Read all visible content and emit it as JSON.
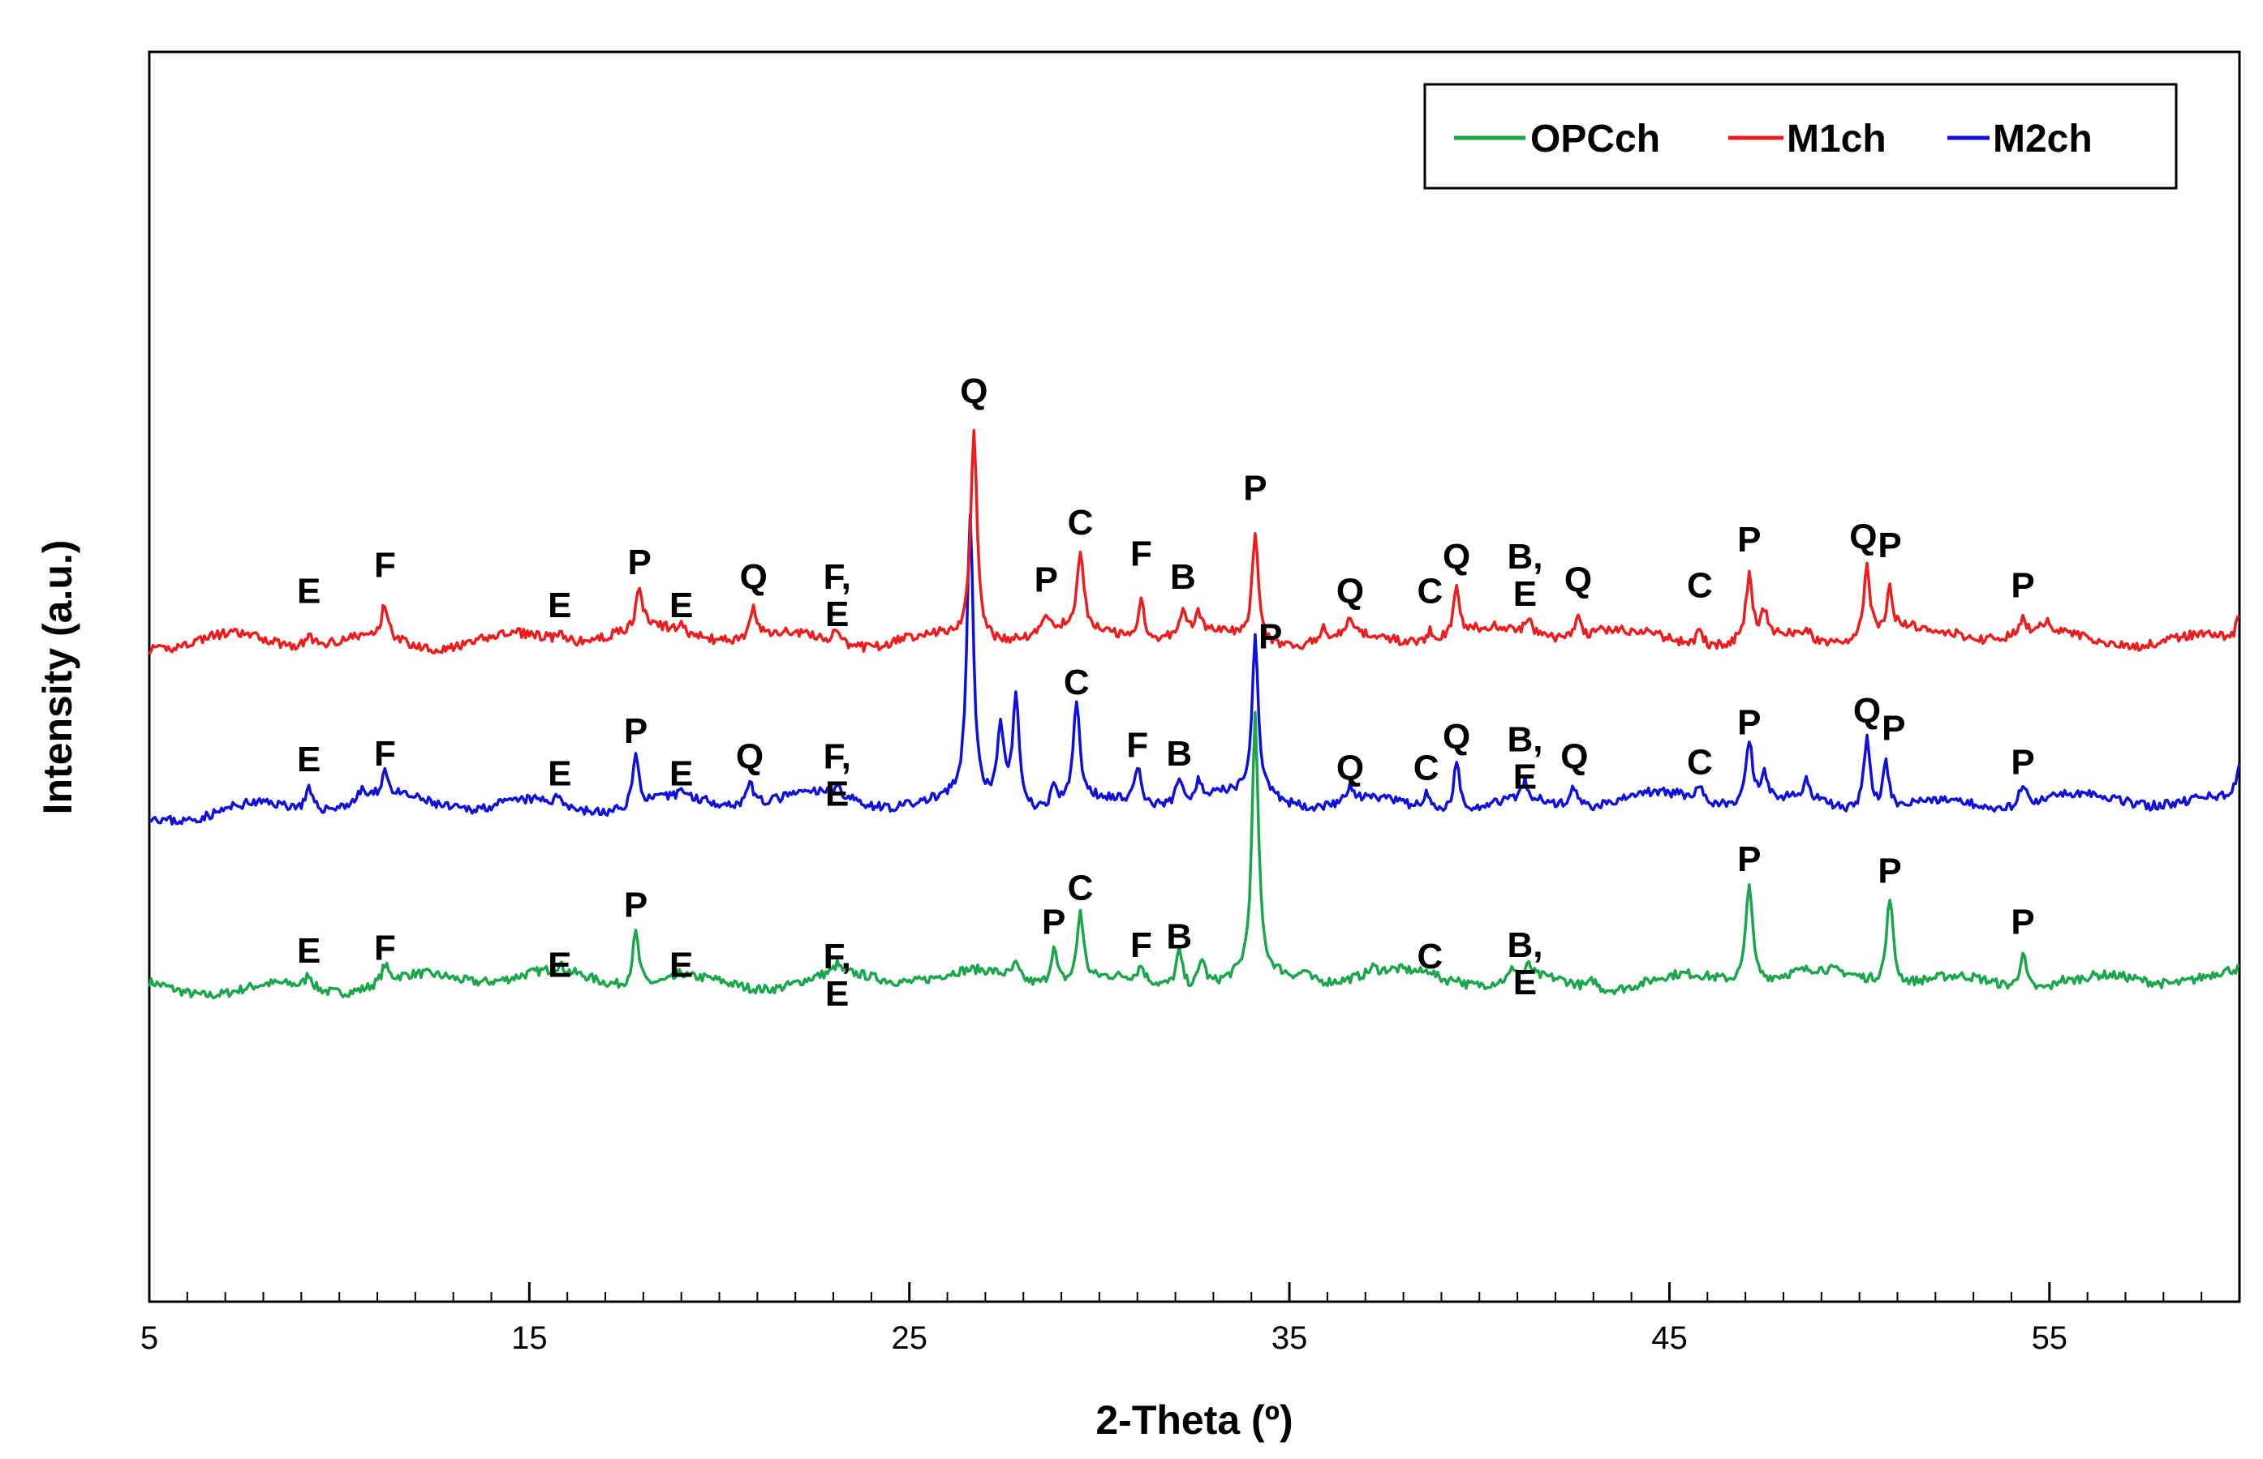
{
  "chart_data": {
    "type": "line",
    "title": "",
    "xlabel": "2-Theta (º)",
    "ylabel": "Intensity (a.u.)",
    "xlim": [
      5,
      60
    ],
    "x_ticks": [
      5,
      15,
      25,
      35,
      45,
      55
    ],
    "x_tick_labels": [
      "5",
      "15",
      "25",
      "35",
      "45",
      "55"
    ],
    "x_minor_step": 1,
    "y_ticks": [],
    "legend": {
      "position": "top-right",
      "entries": [
        "OPCch",
        "M1ch",
        "M2ch"
      ]
    },
    "colors": {
      "OPCch": "#1aa64a",
      "M1ch": "#ee1c1c",
      "M2ch": "#1010dd"
    },
    "series": [
      {
        "name": "OPCch",
        "baseline": 100,
        "noise_seed": 7,
        "peaks": [
          [
            9.2,
            5
          ],
          [
            11.2,
            6
          ],
          [
            15.8,
            2
          ],
          [
            17.8,
            19
          ],
          [
            19.0,
            2
          ],
          [
            23.1,
            3
          ],
          [
            27.8,
            5
          ],
          [
            28.8,
            13
          ],
          [
            29.5,
            25
          ],
          [
            31.1,
            5
          ],
          [
            32.1,
            13
          ],
          [
            32.7,
            10
          ],
          [
            34.1,
            90
          ],
          [
            35.4,
            3
          ],
          [
            37.2,
            2
          ],
          [
            38.7,
            2
          ],
          [
            39.4,
            2
          ],
          [
            40.9,
            4
          ],
          [
            41.3,
            4
          ],
          [
            43.0,
            3
          ],
          [
            47.1,
            36
          ],
          [
            50.8,
            31
          ],
          [
            54.3,
            13
          ],
          [
            55.3,
            2
          ]
        ],
        "labels": [
          {
            "x": 9.2,
            "text": "E",
            "y": 106
          },
          {
            "x": 11.2,
            "text": "F",
            "y": 107
          },
          {
            "x": 15.8,
            "text": "E",
            "y": 101
          },
          {
            "x": 17.8,
            "text": "P",
            "y": 122
          },
          {
            "x": 19.0,
            "text": "E",
            "y": 101
          },
          {
            "x": 23.1,
            "text": "F,\nE",
            "y": 104
          },
          {
            "x": 28.8,
            "text": "P",
            "y": 116
          },
          {
            "x": 29.5,
            "text": "C",
            "y": 128
          },
          {
            "x": 31.1,
            "text": "F",
            "y": 108
          },
          {
            "x": 32.1,
            "text": "B",
            "y": 111
          },
          {
            "x": 38.7,
            "text": "C",
            "y": 104
          },
          {
            "x": 41.2,
            "text": "B,\nE",
            "y": 108
          },
          {
            "x": 47.1,
            "text": "P",
            "y": 138
          },
          {
            "x": 50.8,
            "text": "P",
            "y": 134
          },
          {
            "x": 54.3,
            "text": "P",
            "y": 116
          }
        ]
      },
      {
        "name": "M2ch",
        "baseline": 162,
        "noise_seed": 23,
        "peaks": [
          [
            9.2,
            7
          ],
          [
            10.6,
            4
          ],
          [
            11.2,
            9
          ],
          [
            15.8,
            3
          ],
          [
            17.8,
            18
          ],
          [
            19.0,
            3
          ],
          [
            20.8,
            9
          ],
          [
            23.1,
            4
          ],
          [
            26.6,
            100
          ],
          [
            27.4,
            29
          ],
          [
            27.8,
            40
          ],
          [
            28.8,
            6
          ],
          [
            29.4,
            35
          ],
          [
            31.0,
            13
          ],
          [
            32.1,
            9
          ],
          [
            32.6,
            6
          ],
          [
            34.1,
            55
          ],
          [
            36.6,
            5
          ],
          [
            38.6,
            6
          ],
          [
            39.4,
            17
          ],
          [
            41.2,
            6
          ],
          [
            42.5,
            7
          ],
          [
            45.8,
            6
          ],
          [
            47.1,
            22
          ],
          [
            47.5,
            9
          ],
          [
            48.6,
            6
          ],
          [
            50.2,
            26
          ],
          [
            50.7,
            16
          ],
          [
            54.3,
            8
          ],
          [
            60,
            14
          ]
        ],
        "labels": [
          {
            "x": 9.2,
            "text": "E",
            "y": 173
          },
          {
            "x": 11.2,
            "text": "F",
            "y": 175
          },
          {
            "x": 15.8,
            "text": "E",
            "y": 168
          },
          {
            "x": 17.8,
            "text": "P",
            "y": 183
          },
          {
            "x": 19.0,
            "text": "E",
            "y": 168
          },
          {
            "x": 20.8,
            "text": "Q",
            "y": 174
          },
          {
            "x": 23.1,
            "text": "F,\nE",
            "y": 174
          },
          {
            "x": 29.4,
            "text": "C",
            "y": 200
          },
          {
            "x": 31.0,
            "text": "F",
            "y": 178
          },
          {
            "x": 32.1,
            "text": "B",
            "y": 175
          },
          {
            "x": 34.5,
            "text": "P",
            "y": 216
          },
          {
            "x": 36.6,
            "text": "Q",
            "y": 170
          },
          {
            "x": 38.6,
            "text": "C",
            "y": 170
          },
          {
            "x": 39.4,
            "text": "Q",
            "y": 181
          },
          {
            "x": 41.2,
            "text": "B,\nE",
            "y": 180
          },
          {
            "x": 42.5,
            "text": "Q",
            "y": 174
          },
          {
            "x": 45.8,
            "text": "C",
            "y": 172
          },
          {
            "x": 47.1,
            "text": "P",
            "y": 186
          },
          {
            "x": 50.2,
            "text": "Q",
            "y": 190
          },
          {
            "x": 50.9,
            "text": "P",
            "y": 184
          },
          {
            "x": 54.3,
            "text": "P",
            "y": 172
          }
        ]
      },
      {
        "name": "M1ch",
        "baseline": 220,
        "noise_seed": 41,
        "peaks": [
          [
            9.2,
            4
          ],
          [
            11.2,
            12
          ],
          [
            15.8,
            2
          ],
          [
            17.9,
            14
          ],
          [
            19.0,
            2
          ],
          [
            20.9,
            10
          ],
          [
            23.1,
            5
          ],
          [
            26.7,
            74
          ],
          [
            28.6,
            6
          ],
          [
            29.5,
            26
          ],
          [
            31.1,
            14
          ],
          [
            32.2,
            9
          ],
          [
            32.6,
            6
          ],
          [
            34.1,
            38
          ],
          [
            35.9,
            4
          ],
          [
            36.6,
            5
          ],
          [
            38.7,
            4
          ],
          [
            39.4,
            17
          ],
          [
            41.3,
            4
          ],
          [
            42.6,
            9
          ],
          [
            43.2,
            4
          ],
          [
            45.8,
            6
          ],
          [
            47.1,
            22
          ],
          [
            47.5,
            8
          ],
          [
            48.6,
            4
          ],
          [
            50.2,
            25
          ],
          [
            50.8,
            15
          ],
          [
            54.3,
            6
          ],
          [
            54.9,
            3
          ],
          [
            60,
            10
          ]
        ],
        "labels": [
          {
            "x": 9.2,
            "text": "E",
            "y": 232
          },
          {
            "x": 11.2,
            "text": "F",
            "y": 241
          },
          {
            "x": 15.8,
            "text": "E",
            "y": 227
          },
          {
            "x": 17.9,
            "text": "P",
            "y": 242
          },
          {
            "x": 19.0,
            "text": "E",
            "y": 227
          },
          {
            "x": 20.9,
            "text": "Q",
            "y": 237
          },
          {
            "x": 23.1,
            "text": "F,\nE",
            "y": 237
          },
          {
            "x": 26.7,
            "text": "Q",
            "y": 302
          },
          {
            "x": 28.6,
            "text": "P",
            "y": 236
          },
          {
            "x": 29.5,
            "text": "C",
            "y": 256
          },
          {
            "x": 31.1,
            "text": "F",
            "y": 245
          },
          {
            "x": 32.2,
            "text": "B",
            "y": 237
          },
          {
            "x": 34.1,
            "text": "P",
            "y": 268
          },
          {
            "x": 36.6,
            "text": "Q",
            "y": 232
          },
          {
            "x": 38.7,
            "text": "C",
            "y": 232
          },
          {
            "x": 39.4,
            "text": "Q",
            "y": 244
          },
          {
            "x": 41.2,
            "text": "B,\nE",
            "y": 244
          },
          {
            "x": 42.6,
            "text": "Q",
            "y": 236
          },
          {
            "x": 45.8,
            "text": "C",
            "y": 234
          },
          {
            "x": 47.1,
            "text": "P",
            "y": 250
          },
          {
            "x": 50.1,
            "text": "Q",
            "y": 251
          },
          {
            "x": 50.8,
            "text": "P",
            "y": 248
          },
          {
            "x": 54.3,
            "text": "P",
            "y": 234
          }
        ]
      }
    ]
  }
}
